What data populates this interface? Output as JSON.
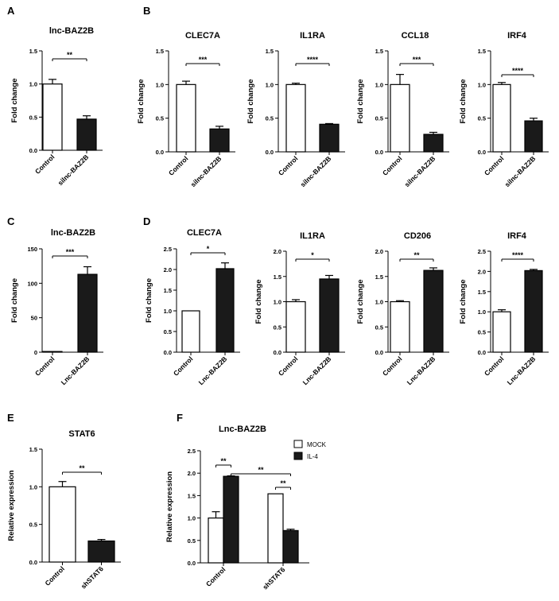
{
  "panels": [
    "A",
    "B",
    "C",
    "D",
    "E",
    "F"
  ],
  "y_axis_label": "Fold change",
  "bar_colors": {
    "control": "#ffffff",
    "treatment": "#1a1a1a",
    "mock": "#ffffff",
    "il4": "#1a1a1a"
  },
  "chart_data": [
    {
      "panel": "A",
      "type": "bar",
      "title": "lnc-BAZ2B",
      "ylabel": "Fold change",
      "categories": [
        "Control",
        "silnc-BAZ2B"
      ],
      "values": [
        1.0,
        0.47
      ],
      "errors": [
        0.07,
        0.05
      ],
      "ylim": [
        0,
        1.5
      ],
      "yticks": [
        "0.0",
        "0.5",
        "1.0",
        "1.5"
      ],
      "significance": [
        {
          "from": 0,
          "to": 1,
          "label": "**"
        }
      ]
    },
    {
      "panel": "B",
      "type": "bar",
      "title": "CLEC7A",
      "ylabel": "Fold change",
      "categories": [
        "Control",
        "silnc-BAZ2B"
      ],
      "values": [
        1.0,
        0.34
      ],
      "errors": [
        0.05,
        0.04
      ],
      "ylim": [
        0,
        1.5
      ],
      "yticks": [
        "0.0",
        "0.5",
        "1.0",
        "1.5"
      ],
      "significance": [
        {
          "from": 0,
          "to": 1,
          "label": "***"
        }
      ]
    },
    {
      "panel": "B",
      "type": "bar",
      "title": "IL1RA",
      "ylabel": "Fold change",
      "categories": [
        "Control",
        "silnc-BAZ2B"
      ],
      "values": [
        1.0,
        0.41
      ],
      "errors": [
        0.02,
        0.01
      ],
      "ylim": [
        0,
        1.5
      ],
      "yticks": [
        "0.0",
        "0.5",
        "1.0",
        "1.5"
      ],
      "significance": [
        {
          "from": 0,
          "to": 1,
          "label": "****"
        }
      ]
    },
    {
      "panel": "B",
      "type": "bar",
      "title": "CCL18",
      "ylabel": "Fold change",
      "categories": [
        "Control",
        "silnc-BAZ2B"
      ],
      "values": [
        1.0,
        0.26
      ],
      "errors": [
        0.15,
        0.03
      ],
      "ylim": [
        0,
        1.5
      ],
      "yticks": [
        "0.0",
        "0.5",
        "1.0",
        "1.5"
      ],
      "significance": [
        {
          "from": 0,
          "to": 1,
          "label": "***"
        }
      ]
    },
    {
      "panel": "B",
      "type": "bar",
      "title": "IRF4",
      "ylabel": "Fold change",
      "categories": [
        "Control",
        "silnc-BAZ2B"
      ],
      "values": [
        1.0,
        0.46
      ],
      "errors": [
        0.03,
        0.04
      ],
      "ylim": [
        0,
        1.5
      ],
      "yticks": [
        "0.0",
        "0.5",
        "1.0",
        "1.5"
      ],
      "significance": [
        {
          "from": 0,
          "to": 1,
          "label": "****"
        }
      ]
    },
    {
      "panel": "C",
      "type": "bar",
      "title": "lnc-BAZ2B",
      "ylabel": "Fold change",
      "categories": [
        "Control",
        "Lnc-BAZ2B"
      ],
      "values": [
        1.0,
        113
      ],
      "errors": [
        0,
        11
      ],
      "ylim": [
        0,
        150
      ],
      "yticks": [
        "0",
        "50",
        "100",
        "150"
      ],
      "significance": [
        {
          "from": 0,
          "to": 1,
          "label": "***"
        }
      ]
    },
    {
      "panel": "D",
      "type": "bar",
      "title": "CLEC7A",
      "ylabel": "Fold change",
      "categories": [
        "Control",
        "Lnc-BAZ2B"
      ],
      "values": [
        1.0,
        2.02
      ],
      "errors": [
        0,
        0.14
      ],
      "ylim": [
        0,
        2.5
      ],
      "yticks": [
        "0.0",
        "0.5",
        "1.0",
        "1.5",
        "2.0",
        "2.5"
      ],
      "significance": [
        {
          "from": 0,
          "to": 1,
          "label": "*"
        }
      ]
    },
    {
      "panel": "D",
      "type": "bar",
      "title": "IL1RA",
      "ylabel": "Fold change",
      "categories": [
        "Control",
        "Lnc-BAZ2B"
      ],
      "values": [
        1.0,
        1.45
      ],
      "errors": [
        0.04,
        0.07
      ],
      "ylim": [
        0,
        2.0
      ],
      "yticks": [
        "0.0",
        "0.5",
        "1.0",
        "1.5",
        "2.0"
      ],
      "significance": [
        {
          "from": 0,
          "to": 1,
          "label": "*"
        }
      ]
    },
    {
      "panel": "D",
      "type": "bar",
      "title": "CD206",
      "ylabel": "Fold change",
      "categories": [
        "Control",
        "Lnc-BAZ2B"
      ],
      "values": [
        1.0,
        1.62
      ],
      "errors": [
        0.02,
        0.05
      ],
      "ylim": [
        0,
        2.0
      ],
      "yticks": [
        "0.0",
        "0.5",
        "1.0",
        "1.5",
        "2.0"
      ],
      "significance": [
        {
          "from": 0,
          "to": 1,
          "label": "**"
        }
      ]
    },
    {
      "panel": "D",
      "type": "bar",
      "title": "IRF4",
      "ylabel": "Fold change",
      "categories": [
        "Control",
        "Lnc-BAZ2B"
      ],
      "values": [
        1.0,
        2.02
      ],
      "errors": [
        0.05,
        0.03
      ],
      "ylim": [
        0,
        2.5
      ],
      "yticks": [
        "0.0",
        "0.5",
        "1.0",
        "1.5",
        "2.0",
        "2.5"
      ],
      "significance": [
        {
          "from": 0,
          "to": 1,
          "label": "****"
        }
      ]
    },
    {
      "panel": "E",
      "type": "bar",
      "title": "STAT6",
      "ylabel": "Relative expression",
      "categories": [
        "Control",
        "shSTAT6"
      ],
      "values": [
        1.0,
        0.28
      ],
      "errors": [
        0.07,
        0.02
      ],
      "ylim": [
        0,
        1.5
      ],
      "yticks": [
        "0.0",
        "0.5",
        "1.0",
        "1.5"
      ],
      "significance": [
        {
          "from": 0,
          "to": 1,
          "label": "**"
        }
      ]
    },
    {
      "panel": "F",
      "type": "bar",
      "title": "Lnc-BAZ2B",
      "ylabel": "Relative expression",
      "categories": [
        "Control",
        "shSTAT6"
      ],
      "series": [
        {
          "name": "MOCK",
          "values": [
            1.0,
            1.54
          ],
          "errors": [
            0.14,
            0
          ]
        },
        {
          "name": "IL-4",
          "values": [
            1.93,
            0.72
          ],
          "errors": [
            0.01,
            0.03
          ]
        }
      ],
      "ylim": [
        0,
        2.5
      ],
      "yticks": [
        "0.0",
        "0.5",
        "1.0",
        "1.5",
        "2.0",
        "2.5"
      ],
      "legend": "top-right",
      "significance": [
        {
          "from": [
            0,
            0
          ],
          "to": [
            0,
            1
          ],
          "label": "**"
        },
        {
          "from": [
            0,
            1
          ],
          "to": [
            1,
            1
          ],
          "label": "**"
        },
        {
          "from": [
            1,
            0
          ],
          "to": [
            1,
            1
          ],
          "label": "**"
        }
      ]
    }
  ]
}
